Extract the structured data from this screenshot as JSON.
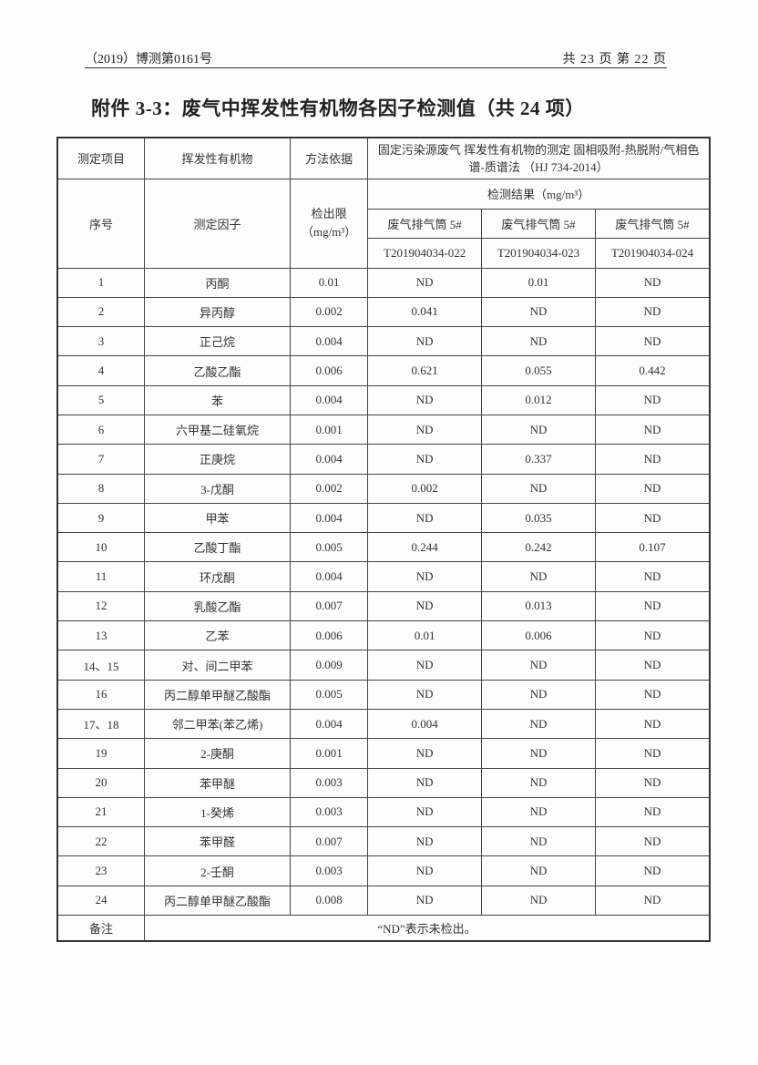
{
  "header": {
    "doc_number": "（2019）博测第0161号",
    "page_info": "共 23 页  第 22 页"
  },
  "title": "附件 3-3：废气中挥发性有机物各因子检测值（共 24 项）",
  "table": {
    "h_item": "测定项目",
    "h_voc": "挥发性有机物",
    "h_method": "方法依据",
    "method_text": "固定污染源废气 挥发性有机物的测定 固相吸附-热脱附/气相色谱-质谱法 （HJ 734-2014）",
    "h_seq": "序号",
    "h_factor": "测定因子",
    "h_limit": "检出限（mg/m³）",
    "h_results": "检测结果（mg/m³）",
    "samples": [
      {
        "location": "废气排气筒 5#",
        "id": "T201904034-022"
      },
      {
        "location": "废气排气筒 5#",
        "id": "T201904034-023"
      },
      {
        "location": "废气排气筒 5#",
        "id": "T201904034-024"
      }
    ],
    "rows": [
      [
        "1",
        "丙酮",
        "0.01",
        "ND",
        "0.01",
        "ND"
      ],
      [
        "2",
        "异丙醇",
        "0.002",
        "0.041",
        "ND",
        "ND"
      ],
      [
        "3",
        "正己烷",
        "0.004",
        "ND",
        "ND",
        "ND"
      ],
      [
        "4",
        "乙酸乙酯",
        "0.006",
        "0.621",
        "0.055",
        "0.442"
      ],
      [
        "5",
        "苯",
        "0.004",
        "ND",
        "0.012",
        "ND"
      ],
      [
        "6",
        "六甲基二硅氧烷",
        "0.001",
        "ND",
        "ND",
        "ND"
      ],
      [
        "7",
        "正庚烷",
        "0.004",
        "ND",
        "0.337",
        "ND"
      ],
      [
        "8",
        "3-戊酮",
        "0.002",
        "0.002",
        "ND",
        "ND"
      ],
      [
        "9",
        "甲苯",
        "0.004",
        "ND",
        "0.035",
        "ND"
      ],
      [
        "10",
        "乙酸丁酯",
        "0.005",
        "0.244",
        "0.242",
        "0.107"
      ],
      [
        "11",
        "环戊酮",
        "0.004",
        "ND",
        "ND",
        "ND"
      ],
      [
        "12",
        "乳酸乙酯",
        "0.007",
        "ND",
        "0.013",
        "ND"
      ],
      [
        "13",
        "乙苯",
        "0.006",
        "0.01",
        "0.006",
        "ND"
      ],
      [
        "14、15",
        "对、间二甲苯",
        "0.009",
        "ND",
        "ND",
        "ND"
      ],
      [
        "16",
        "丙二醇单甲醚乙酸酯",
        "0.005",
        "ND",
        "ND",
        "ND"
      ],
      [
        "17、18",
        "邻二甲苯(苯乙烯)",
        "0.004",
        "0.004",
        "ND",
        "ND"
      ],
      [
        "19",
        "2-庚酮",
        "0.001",
        "ND",
        "ND",
        "ND"
      ],
      [
        "20",
        "苯甲醚",
        "0.003",
        "ND",
        "ND",
        "ND"
      ],
      [
        "21",
        "1-癸烯",
        "0.003",
        "ND",
        "ND",
        "ND"
      ],
      [
        "22",
        "苯甲醛",
        "0.007",
        "ND",
        "ND",
        "ND"
      ],
      [
        "23",
        "2-壬酮",
        "0.003",
        "ND",
        "ND",
        "ND"
      ],
      [
        "24",
        "丙二醇单甲醚乙酸酯",
        "0.008",
        "ND",
        "ND",
        "ND"
      ]
    ],
    "remark_label": "备注",
    "remark_text": "“ND”表示未检出。"
  }
}
